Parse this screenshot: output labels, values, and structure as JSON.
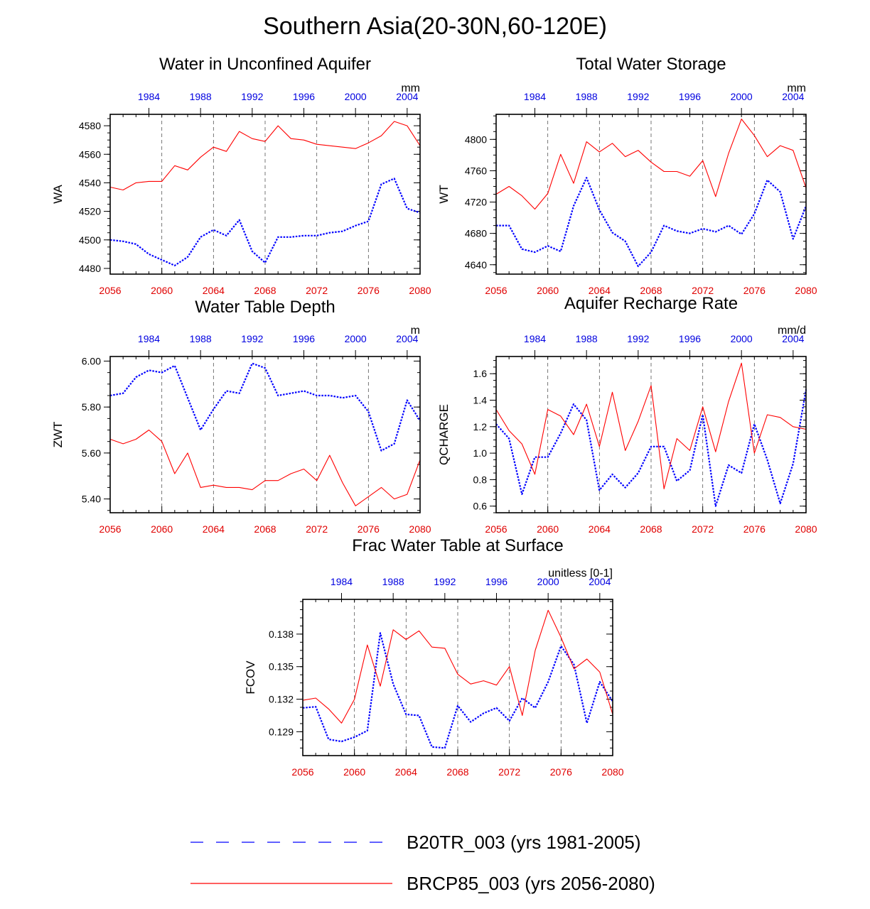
{
  "title": "Southern Asia(20-30N,60-120E)",
  "colors": {
    "historical": "#0000ff",
    "future": "#ff0000"
  },
  "legend": [
    {
      "series": "historical",
      "label": "B20TR_003 (yrs 1981-2005)",
      "style": "dashed"
    },
    {
      "series": "future",
      "label": "BRCP85_003 (yrs 2056-2080)",
      "style": "solid"
    }
  ],
  "chart_data": [
    {
      "type": "line",
      "title": "Water in Unconfined Aquifer",
      "ylabel": "WA",
      "units": "mm",
      "ylim": [
        4476,
        4588
      ],
      "yticks": [
        4480,
        4500,
        4520,
        4540,
        4560,
        4580
      ],
      "ytick_labels": [
        "4480",
        "4500",
        "4520",
        "4540",
        "4560",
        "4580"
      ],
      "bottom_axis": {
        "range": [
          2056,
          2080
        ],
        "ticks": [
          "2056",
          "2060",
          "2064",
          "2068",
          "2072",
          "2076",
          "2080"
        ]
      },
      "top_axis": {
        "range": [
          1981,
          2005
        ],
        "ticks": [
          "1984",
          "1988",
          "1992",
          "1996",
          "2000",
          "2004"
        ]
      },
      "series": [
        {
          "name": "BRCP85_003 (yrs 2056-2080)",
          "key": "future",
          "values": [
            4537,
            4535,
            4540,
            4541,
            4541,
            4552,
            4549,
            4558,
            4565,
            4562,
            4576,
            4571,
            4569,
            4580,
            4571,
            4570,
            4567,
            4566,
            4565,
            4564,
            4568,
            4573,
            4583,
            4580,
            4566
          ]
        },
        {
          "name": "B20TR_003 (yrs 1981-2005)",
          "key": "historical",
          "values": [
            4500,
            4499,
            4497,
            4490,
            4486,
            4482,
            4488,
            4502,
            4507,
            4503,
            4514,
            4492,
            4484,
            4502,
            4502,
            4503,
            4503,
            4505,
            4506,
            4510,
            4513,
            4539,
            4543,
            4522,
            4519
          ]
        }
      ]
    },
    {
      "type": "line",
      "title": "Total Water Storage",
      "ylabel": "WT",
      "units": "mm",
      "ylim": [
        4628,
        4832
      ],
      "yticks": [
        4640,
        4680,
        4720,
        4760,
        4800
      ],
      "ytick_labels": [
        "4640",
        "4680",
        "4720",
        "4760",
        "4800"
      ],
      "bottom_axis": {
        "range": [
          2056,
          2080
        ],
        "ticks": [
          "2056",
          "2060",
          "2064",
          "2068",
          "2072",
          "2076",
          "2080"
        ]
      },
      "top_axis": {
        "range": [
          1981,
          2005
        ],
        "ticks": [
          "1984",
          "1988",
          "1992",
          "1996",
          "2000",
          "2004"
        ]
      },
      "series": [
        {
          "name": "BRCP85_003 (yrs 2056-2080)",
          "key": "future",
          "values": [
            4730,
            4740,
            4728,
            4711,
            4731,
            4781,
            4744,
            4797,
            4784,
            4795,
            4778,
            4786,
            4771,
            4759,
            4759,
            4753,
            4773,
            4727,
            4782,
            4826,
            4805,
            4778,
            4792,
            4786,
            4738
          ]
        },
        {
          "name": "B20TR_003 (yrs 1981-2005)",
          "key": "historical",
          "values": [
            4690,
            4690,
            4660,
            4656,
            4664,
            4657,
            4715,
            4751,
            4710,
            4681,
            4670,
            4638,
            4656,
            4690,
            4683,
            4680,
            4686,
            4682,
            4690,
            4679,
            4705,
            4748,
            4733,
            4673,
            4715
          ]
        }
      ]
    },
    {
      "type": "line",
      "title": "Water Table Depth",
      "ylabel": "ZWT",
      "units": "m",
      "ylim": [
        5.34,
        6.02
      ],
      "yticks": [
        5.4,
        5.6,
        5.8,
        6.0
      ],
      "ytick_labels": [
        "5.40",
        "5.60",
        "5.80",
        "6.00"
      ],
      "bottom_axis": {
        "range": [
          2056,
          2080
        ],
        "ticks": [
          "2056",
          "2060",
          "2064",
          "2068",
          "2072",
          "2076",
          "2080"
        ]
      },
      "top_axis": {
        "range": [
          1981,
          2005
        ],
        "ticks": [
          "1984",
          "1988",
          "1992",
          "1996",
          "2000",
          "2004"
        ]
      },
      "series": [
        {
          "name": "BRCP85_003 (yrs 2056-2080)",
          "key": "future",
          "values": [
            5.66,
            5.64,
            5.66,
            5.7,
            5.65,
            5.51,
            5.6,
            5.45,
            5.46,
            5.45,
            5.45,
            5.44,
            5.48,
            5.48,
            5.51,
            5.53,
            5.48,
            5.59,
            5.47,
            5.37,
            5.41,
            5.45,
            5.4,
            5.42,
            5.57
          ]
        },
        {
          "name": "B20TR_003 (yrs 1981-2005)",
          "key": "historical",
          "values": [
            5.85,
            5.86,
            5.93,
            5.96,
            5.95,
            5.98,
            5.84,
            5.7,
            5.79,
            5.87,
            5.86,
            5.99,
            5.97,
            5.85,
            5.86,
            5.87,
            5.85,
            5.85,
            5.84,
            5.85,
            5.78,
            5.61,
            5.64,
            5.83,
            5.74
          ]
        }
      ]
    },
    {
      "type": "line",
      "title": "Aquifer Recharge Rate",
      "ylabel": "QCHARGE",
      "units": "mm/d",
      "ylim": [
        0.55,
        1.73
      ],
      "yticks": [
        0.6,
        0.8,
        1.0,
        1.2,
        1.4,
        1.6
      ],
      "ytick_labels": [
        "0.6",
        "0.8",
        "1.0",
        "1.2",
        "1.4",
        "1.6"
      ],
      "bottom_axis": {
        "range": [
          2056,
          2080
        ],
        "ticks": [
          "2056",
          "2060",
          "2064",
          "2068",
          "2072",
          "2076",
          "2080"
        ]
      },
      "top_axis": {
        "range": [
          1981,
          2005
        ],
        "ticks": [
          "1984",
          "1988",
          "1992",
          "1996",
          "2000",
          "2004"
        ]
      },
      "series": [
        {
          "name": "BRCP85_003 (yrs 2056-2080)",
          "key": "future",
          "values": [
            1.33,
            1.17,
            1.07,
            0.84,
            1.33,
            1.28,
            1.14,
            1.37,
            1.05,
            1.46,
            1.02,
            1.24,
            1.51,
            0.73,
            1.11,
            1.02,
            1.35,
            1.01,
            1.39,
            1.68,
            1.0,
            1.29,
            1.27,
            1.2,
            1.18
          ]
        },
        {
          "name": "B20TR_003 (yrs 1981-2005)",
          "key": "historical",
          "values": [
            1.22,
            1.11,
            0.69,
            0.97,
            0.97,
            1.15,
            1.37,
            1.25,
            0.72,
            0.84,
            0.74,
            0.85,
            1.05,
            1.05,
            0.79,
            0.87,
            1.29,
            0.6,
            0.91,
            0.85,
            1.22,
            0.95,
            0.62,
            0.92,
            1.48
          ]
        }
      ]
    },
    {
      "type": "line",
      "title": "Frac Water Table at Surface",
      "ylabel": "FCOV",
      "units": "unitless [0-1]",
      "ylim": [
        0.1268,
        0.1412
      ],
      "yticks": [
        0.129,
        0.132,
        0.135,
        0.138
      ],
      "ytick_labels": [
        "0.129",
        "0.132",
        "0.135",
        "0.138"
      ],
      "bottom_axis": {
        "range": [
          2056,
          2080
        ],
        "ticks": [
          "2056",
          "2060",
          "2064",
          "2068",
          "2072",
          "2076",
          "2080"
        ]
      },
      "top_axis": {
        "range": [
          1981,
          2005
        ],
        "ticks": [
          "1984",
          "1988",
          "1992",
          "1996",
          "2000",
          "2004"
        ]
      },
      "series": [
        {
          "name": "BRCP85_003 (yrs 2056-2080)",
          "key": "future",
          "values": [
            0.1319,
            0.1321,
            0.1311,
            0.1298,
            0.132,
            0.137,
            0.1332,
            0.1384,
            0.1375,
            0.1383,
            0.1368,
            0.1367,
            0.1343,
            0.1334,
            0.1337,
            0.1333,
            0.135,
            0.1305,
            0.1365,
            0.1402,
            0.1377,
            0.1348,
            0.1357,
            0.1345,
            0.1306
          ]
        },
        {
          "name": "B20TR_003 (yrs 1981-2005)",
          "key": "historical",
          "values": [
            0.1312,
            0.1313,
            0.1283,
            0.1281,
            0.1285,
            0.1291,
            0.1381,
            0.1334,
            0.1306,
            0.1305,
            0.1276,
            0.1275,
            0.1314,
            0.1299,
            0.1307,
            0.1312,
            0.13,
            0.1321,
            0.1312,
            0.1336,
            0.1369,
            0.1352,
            0.1298,
            0.1336,
            0.1318
          ]
        }
      ]
    }
  ]
}
